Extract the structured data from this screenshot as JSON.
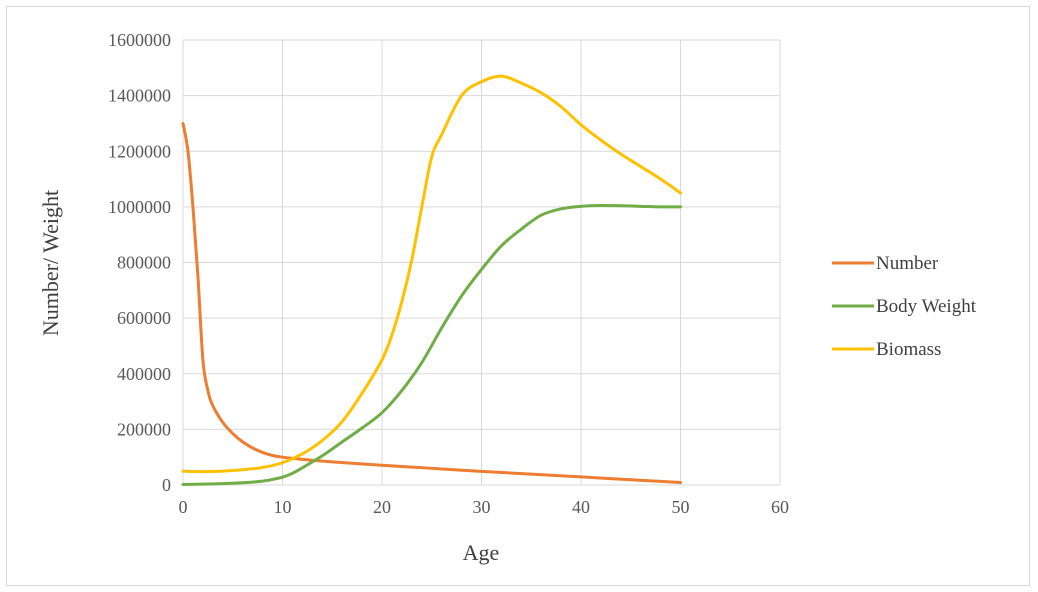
{
  "chart_data": {
    "type": "line",
    "title": "",
    "xlabel": "Age",
    "ylabel": "Number/ Weight",
    "xlim": [
      0,
      60
    ],
    "ylim": [
      0,
      1600000
    ],
    "x_ticks": [
      0,
      10,
      20,
      30,
      40,
      50,
      60
    ],
    "y_ticks": [
      0,
      200000,
      400000,
      600000,
      800000,
      1000000,
      1200000,
      1400000,
      1600000
    ],
    "grid": true,
    "legend_position": "right",
    "series": [
      {
        "name": "Number",
        "color": "#ED7D31",
        "x": [
          0,
          0.5,
          1,
          1.5,
          2,
          2.5,
          3,
          4,
          5,
          6,
          7,
          8,
          9,
          10,
          12,
          15,
          20,
          25,
          30,
          35,
          40,
          45,
          50
        ],
        "y": [
          1300000,
          1200000,
          1000000,
          750000,
          450000,
          340000,
          285000,
          225000,
          185000,
          155000,
          133000,
          117000,
          106000,
          100000,
          92000,
          83000,
          71000,
          60000,
          49000,
          39000,
          29000,
          19000,
          9000
        ]
      },
      {
        "name": "Body Weight",
        "color": "#70AD47",
        "x": [
          0,
          2,
          4,
          6,
          8,
          9,
          10,
          11,
          12,
          14,
          16,
          18,
          20,
          22,
          24,
          26,
          28,
          30,
          32,
          34,
          36,
          38,
          40,
          42,
          44,
          46,
          48,
          50
        ],
        "y": [
          2000,
          3000,
          5000,
          8000,
          14000,
          20000,
          28000,
          42000,
          62000,
          105000,
          155000,
          205000,
          260000,
          340000,
          440000,
          565000,
          680000,
          775000,
          860000,
          920000,
          970000,
          993000,
          1002000,
          1005000,
          1004000,
          1002000,
          1000000,
          1000000
        ]
      },
      {
        "name": "Biomass",
        "color": "#FFC000",
        "x": [
          0,
          2,
          4,
          6,
          8,
          10,
          12,
          14,
          16,
          18,
          20,
          21,
          22,
          23,
          24,
          25,
          26,
          28,
          30,
          32,
          34,
          36,
          38,
          40,
          42,
          44,
          46,
          48,
          50
        ],
        "y": [
          50000,
          48000,
          50000,
          55000,
          63000,
          80000,
          112000,
          160000,
          228000,
          330000,
          450000,
          540000,
          660000,
          810000,
          1000000,
          1180000,
          1260000,
          1400000,
          1450000,
          1470000,
          1445000,
          1410000,
          1360000,
          1295000,
          1240000,
          1190000,
          1145000,
          1100000,
          1050000
        ]
      }
    ]
  }
}
